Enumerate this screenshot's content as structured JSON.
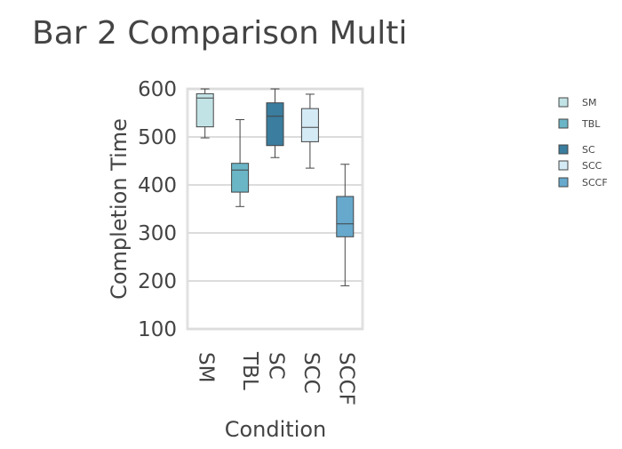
{
  "chart_data": {
    "type": "box",
    "title": "Bar 2 Comparison Multi",
    "xlabel": "Condition",
    "ylabel": "Completion Time",
    "ylim": [
      100,
      600
    ],
    "yticks": [
      100,
      200,
      300,
      400,
      500,
      600
    ],
    "grid": true,
    "legend_position": "top-right",
    "categories": [
      "SM",
      "TBL",
      "SC",
      "SCC",
      "SCCF"
    ],
    "series": [
      {
        "name": "SM",
        "color": "#c2e3e6",
        "min": 498,
        "q1": 521,
        "median": 581,
        "q3": 590,
        "max": 600
      },
      {
        "name": "TBL",
        "color": "#6ab5c6",
        "min": 355,
        "q1": 385,
        "median": 431,
        "q3": 445,
        "max": 536
      },
      {
        "name": "SC",
        "color": "#3a7d9e",
        "min": 457,
        "q1": 482,
        "median": 543,
        "q3": 571,
        "max": 600
      },
      {
        "name": "SCC",
        "color": "#d4ebf6",
        "min": 435,
        "q1": 490,
        "median": 520,
        "q3": 559,
        "max": 589
      },
      {
        "name": "SCCF",
        "color": "#66a9cc",
        "min": 190,
        "q1": 292,
        "median": 319,
        "q3": 376,
        "max": 443
      }
    ]
  }
}
